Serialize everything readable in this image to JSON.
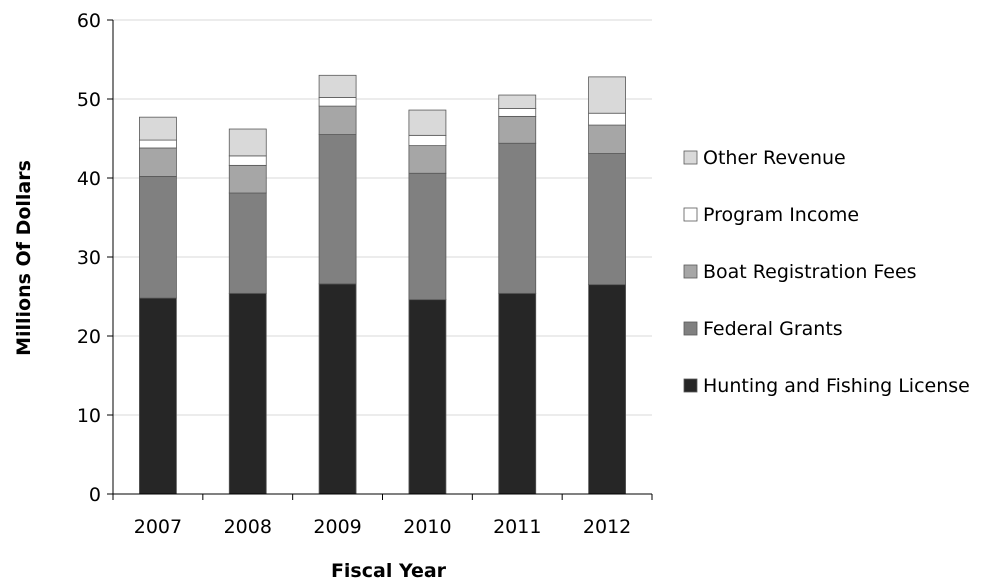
{
  "chart_data": {
    "type": "bar",
    "stacked": true,
    "categories": [
      "2007",
      "2008",
      "2009",
      "2010",
      "2011",
      "2012"
    ],
    "series": [
      {
        "name": "Hunting and Fishing License",
        "color": "#262626",
        "values": [
          24.8,
          25.4,
          26.6,
          24.6,
          25.4,
          26.5
        ]
      },
      {
        "name": "Federal Grants",
        "color": "#808080",
        "values": [
          15.4,
          12.7,
          18.9,
          16.0,
          19.0,
          16.6
        ]
      },
      {
        "name": "Boat Registration Fees",
        "color": "#a6a6a6",
        "values": [
          3.6,
          3.5,
          3.6,
          3.5,
          3.4,
          3.6
        ]
      },
      {
        "name": "Program Income",
        "color": "#ffffff",
        "values": [
          1.0,
          1.2,
          1.1,
          1.3,
          1.0,
          1.5
        ]
      },
      {
        "name": "Other Revenue",
        "color": "#d9d9d9",
        "values": [
          2.9,
          3.4,
          2.8,
          3.2,
          1.7,
          4.6
        ]
      }
    ],
    "legend_order": [
      "Other Revenue",
      "Program Income",
      "Boat Registration Fees",
      "Federal Grants",
      "Hunting and Fishing License"
    ],
    "title": "",
    "xlabel": "Fiscal Year",
    "ylabel": "Millions Of Dollars",
    "ylim": [
      0,
      60
    ],
    "yticks": [
      0,
      10,
      20,
      30,
      40,
      50,
      60
    ],
    "grid": true,
    "legend_position": "right"
  }
}
